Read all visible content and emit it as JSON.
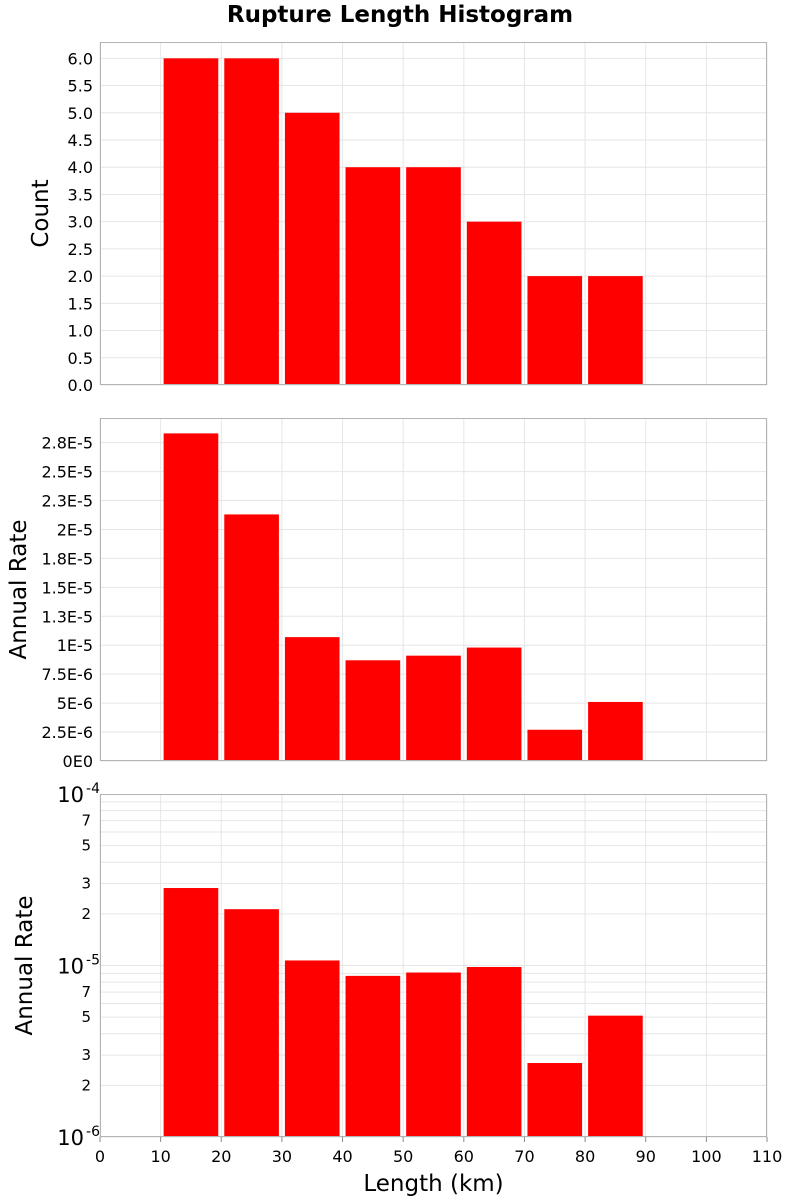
{
  "title": "Rupture Length Histogram",
  "colors": {
    "bar": "#ff0000",
    "grid": "#e6e6e6",
    "frame": "#b3b3b3",
    "background": "#ffffff"
  },
  "chart_data": {
    "type": "bar",
    "title": "Rupture Length Histogram",
    "xlabel": "Length (km)",
    "xlim": [
      0,
      110
    ],
    "xticks": [
      0,
      10,
      20,
      30,
      40,
      50,
      60,
      70,
      80,
      90,
      100,
      110
    ],
    "bins": [
      [
        10,
        20
      ],
      [
        20,
        30
      ],
      [
        30,
        40
      ],
      [
        40,
        50
      ],
      [
        50,
        60
      ],
      [
        60,
        70
      ],
      [
        70,
        80
      ],
      [
        80,
        90
      ]
    ],
    "grid": true,
    "panels": [
      {
        "name": "count",
        "ylabel": "Count",
        "yscale": "linear",
        "ylim": [
          0,
          6.3
        ],
        "yticks": [
          0,
          0.5,
          1.0,
          1.5,
          2.0,
          2.5,
          3.0,
          3.5,
          4.0,
          4.5,
          5.0,
          5.5,
          6.0
        ],
        "ytick_labels": [
          "0.0",
          "0.5",
          "1.0",
          "1.5",
          "2.0",
          "2.5",
          "3.0",
          "3.5",
          "4.0",
          "4.5",
          "5.0",
          "5.5",
          "6.0"
        ],
        "values": [
          6,
          6,
          5,
          4,
          4,
          3,
          2,
          2
        ]
      },
      {
        "name": "rate-linear",
        "ylabel": "Annual Rate",
        "yscale": "linear",
        "ylim": [
          0,
          2.963e-05
        ],
        "yticks": [
          0,
          2.5e-06,
          5e-06,
          7.5e-06,
          1e-05,
          1.25e-05,
          1.5e-05,
          1.75e-05,
          2e-05,
          2.25e-05,
          2.5e-05,
          2.75e-05
        ],
        "ytick_labels": [
          "0E0",
          "2.5E-6",
          "5E-6",
          "7.5E-6",
          "1E-5",
          "1.3E-5",
          "1.5E-5",
          "1.8E-5",
          "2E-5",
          "2.3E-5",
          "2.5E-5",
          "2.8E-5"
        ],
        "values": [
          2.83e-05,
          2.13e-05,
          1.07e-05,
          8.7e-06,
          9.1e-06,
          9.8e-06,
          2.7e-06,
          5.1e-06
        ]
      },
      {
        "name": "rate-log",
        "ylabel": "Annual Rate",
        "yscale": "log",
        "ylim": [
          1e-06,
          0.0001
        ],
        "major_ticks": [
          {
            "value": 1e-06,
            "base": "10",
            "exp": "-6"
          },
          {
            "value": 1e-05,
            "base": "10",
            "exp": "-5"
          },
          {
            "value": 0.0001,
            "base": "10",
            "exp": "-4"
          }
        ],
        "minor_labels": [
          {
            "value": 2e-06,
            "label": "2"
          },
          {
            "value": 3e-06,
            "label": "3"
          },
          {
            "value": 5e-06,
            "label": "5"
          },
          {
            "value": 7e-06,
            "label": "7"
          },
          {
            "value": 2e-05,
            "label": "2"
          },
          {
            "value": 3e-05,
            "label": "3"
          },
          {
            "value": 5e-05,
            "label": "5"
          },
          {
            "value": 7e-05,
            "label": "7"
          }
        ],
        "values": [
          2.83e-05,
          2.13e-05,
          1.07e-05,
          8.7e-06,
          9.1e-06,
          9.8e-06,
          2.7e-06,
          5.1e-06
        ]
      }
    ]
  }
}
